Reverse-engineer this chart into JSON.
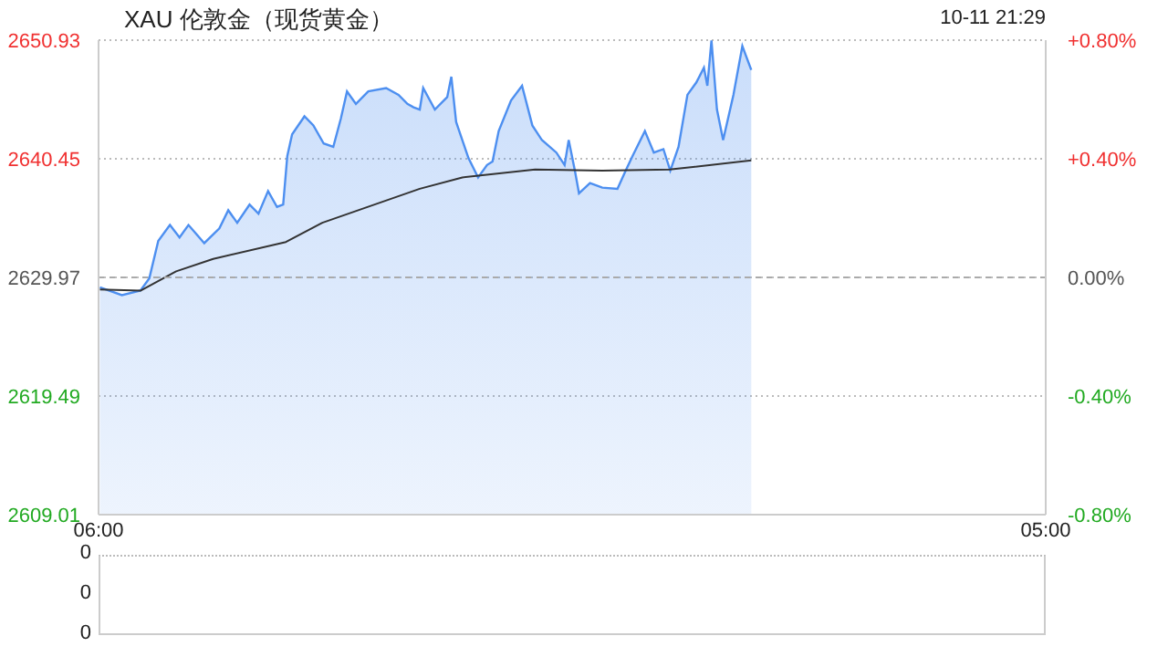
{
  "chart_data": [
    {
      "type": "area",
      "title": "XAU 伦敦金（现货黄金）",
      "annotations": [
        "10-11 21:29"
      ],
      "xlim": [
        "--10-11T06:00",
        "--10-12T05:00"
      ],
      "xticks": [
        {
          "value": "--10-11T06:00",
          "label": "06:00"
        },
        {
          "value": "--10-12T05:00",
          "label": "05:00"
        }
      ],
      "ylim": [
        2609.01,
        2650.93
      ],
      "yticks": [
        2650.93,
        2640.45,
        2629.97,
        2619.49,
        2609.01
      ],
      "y2lim": [
        -0.8,
        0.8
      ],
      "y2ticks": [
        {
          "value": 0.8,
          "label": "+0.80%"
        },
        {
          "value": 0.4,
          "label": "+0.40%"
        },
        {
          "value": 0,
          "label": "0.00%"
        },
        {
          "value": -0.4,
          "label": "-0.40%"
        },
        {
          "value": -0.8,
          "label": "-0.80%"
        }
      ],
      "grid": "y",
      "ref_lines": [
        {
          "axis": "y",
          "value": 2629.97,
          "color": "#aaaaaa",
          "line_style": "dashed"
        }
      ],
      "series": [
        {
          "type": "area",
          "color": "#4d8ff0",
          "x": [
            "--10-11T06:02",
            "--10-11T06:34",
            "--10-11T07:01",
            "--10-11T07:14",
            "--10-11T07:27",
            "--10-11T07:44",
            "--10-11T07:58",
            "--10-11T08:11",
            "--10-11T08:34",
            "--10-11T08:56",
            "--10-11T09:09",
            "--10-11T09:22",
            "--10-11T09:40",
            "--10-11T09:53",
            "--10-11T10:07",
            "--10-11T10:20",
            "--10-11T10:29",
            "--10-11T10:35",
            "--10-11T10:42",
            "--10-11T11:00",
            "--10-11T11:13",
            "--10-11T11:28",
            "--10-11T11:42",
            "--10-11T11:53",
            "--10-11T12:02",
            "--10-11T12:15",
            "--10-11T12:33",
            "--10-11T12:59",
            "--10-11T13:17",
            "--10-11T13:30",
            "--10-11T13:39",
            "--10-11T13:48",
            "--10-11T13:53",
            "--10-11T14:10",
            "--10-11T14:28",
            "--10-11T14:34",
            "--10-11T14:41",
            "--10-11T14:59",
            "--10-11T15:13",
            "--10-11T15:26",
            "--10-11T15:34",
            "--10-11T15:43",
            "--10-11T16:01",
            "--10-11T16:17",
            "--10-11T16:32",
            "--10-11T16:46",
            "--10-11T17:07",
            "--10-11T17:19",
            "--10-11T17:25",
            "--10-11T17:34",
            "--10-11T17:40",
            "--10-11T17:56",
            "--10-11T18:14",
            "--10-11T18:36",
            "--10-11T18:48",
            "--10-11T18:58",
            "--10-11T19:16",
            "--10-11T19:29",
            "--10-11T19:43",
            "--10-11T19:53",
            "--10-11T20:05",
            "--10-11T20:18",
            "--10-11T20:31",
            "--10-11T20:42",
            "--10-11T20:47",
            "--10-11T20:53",
            "--10-11T21:01",
            "--10-11T21:10",
            "--10-11T21:25",
            "--10-11T21:38",
            "--10-11T21:51"
          ],
          "values": [
            2629.1,
            2628.4,
            2628.8,
            2629.9,
            2633.2,
            2634.6,
            2633.5,
            2634.6,
            2633.0,
            2634.3,
            2635.9,
            2634.8,
            2636.4,
            2635.6,
            2637.6,
            2636.2,
            2636.4,
            2640.7,
            2642.6,
            2644.2,
            2643.4,
            2641.8,
            2641.5,
            2644.0,
            2646.4,
            2645.3,
            2646.4,
            2646.7,
            2646.1,
            2645.3,
            2645.0,
            2644.8,
            2646.7,
            2644.8,
            2645.9,
            2647.7,
            2643.7,
            2640.5,
            2638.8,
            2639.9,
            2640.2,
            2642.9,
            2645.6,
            2646.9,
            2643.4,
            2642.1,
            2641.0,
            2639.9,
            2642.1,
            2639.4,
            2637.4,
            2638.3,
            2637.9,
            2637.8,
            2639.4,
            2640.7,
            2642.9,
            2641.0,
            2641.3,
            2639.4,
            2641.5,
            2646.1,
            2647.2,
            2648.5,
            2646.9,
            2650.9,
            2644.8,
            2642.1,
            2646.1,
            2650.4,
            2648.3
          ]
        },
        {
          "type": "line",
          "color": "#333333",
          "x": [
            "--10-11T06:02",
            "--10-11T07:01",
            "--10-11T07:53",
            "--10-11T08:47",
            "--10-11T10:33",
            "--10-11T11:26",
            "--10-11T13:48",
            "--10-11T14:50",
            "--10-11T16:36",
            "--10-11T18:14",
            "--10-11T19:52",
            "--10-11T21:51"
          ],
          "values": [
            2628.9,
            2628.8,
            2630.5,
            2631.6,
            2633.1,
            2634.8,
            2637.8,
            2638.8,
            2639.5,
            2639.4,
            2639.5,
            2640.3
          ]
        }
      ]
    },
    {
      "type": "other",
      "annotations": [
        "0",
        "0",
        "0"
      ]
    }
  ]
}
